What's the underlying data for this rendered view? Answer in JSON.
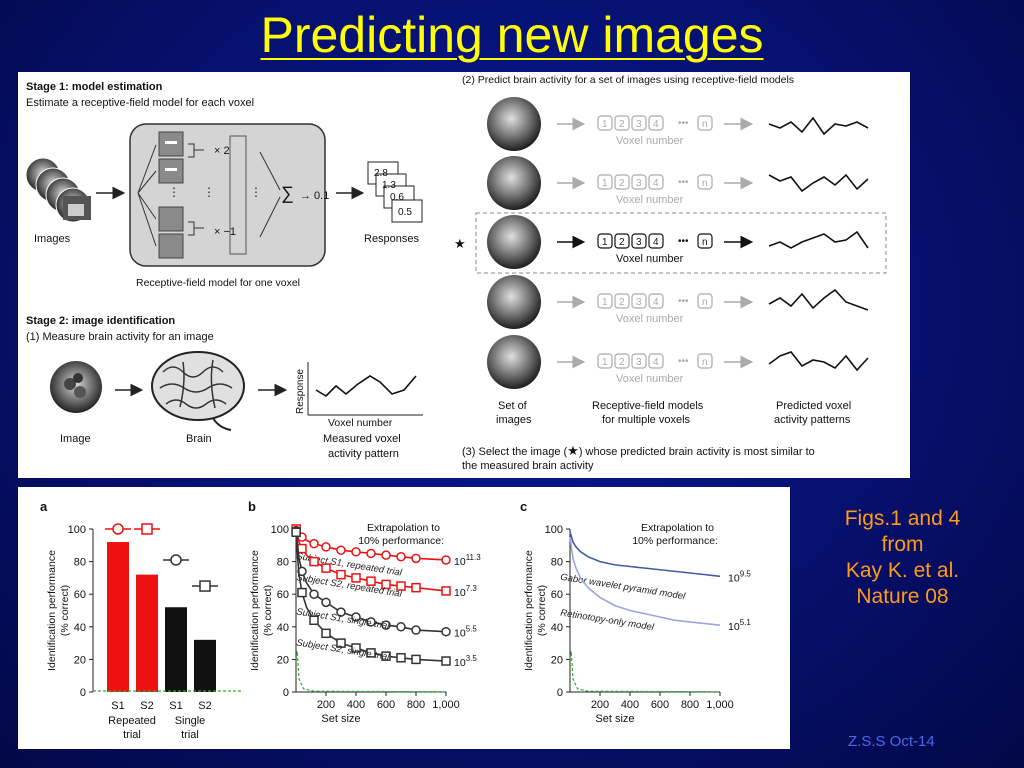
{
  "slide": {
    "title": "Predicting new images",
    "caption": [
      "Figs.1 and 4",
      "from",
      "Kay K. et al.",
      "Nature 08"
    ],
    "credit": "Z.S.S Oct-14"
  },
  "fig1": {
    "stage1_title": "Stage 1: model estimation",
    "stage1_sub": "Estimate a receptive-field model for each voxel",
    "images_label": "Images",
    "weight_top": "× 2",
    "weight_bottom": "× −1",
    "sum_symbol": "∑",
    "sum_out": "→ 0.1",
    "responses_label": "Responses",
    "response_vals": [
      "2.8",
      "1.3",
      "0.6",
      "0.5"
    ],
    "rf_caption": "Receptive-field model for one voxel",
    "stage2_title": "Stage 2: image identification",
    "stage2_sub": "(1) Measure brain activity for an image",
    "image_label": "Image",
    "brain_label": "Brain",
    "response_axis": "Response",
    "voxel_number_axis": "Voxel number",
    "measured_label_1": "Measured voxel",
    "measured_label_2": "activity pattern",
    "right_title": "(2) Predict brain activity for a set of images using receptive-field models",
    "voxel_boxes": [
      "1",
      "2",
      "3",
      "4",
      "n"
    ],
    "voxel_number": "Voxel number",
    "set_label_1": "Set of",
    "set_label_2": "images",
    "rf_models_1": "Receptive-field models",
    "rf_models_2": "for multiple voxels",
    "pred_1": "Predicted voxel",
    "pred_2": "activity patterns",
    "select_1": "(3) Select the image (",
    "select_2": ") whose predicted brain activity is most similar to",
    "select_3": "the measured brain activity"
  },
  "chart_data": [
    {
      "panel": "a",
      "type": "bar",
      "ylabel": "Identification performance (% correct)",
      "ylim": [
        0,
        100
      ],
      "yticks": [
        0,
        20,
        40,
        60,
        80,
        100
      ],
      "categories": [
        "S1",
        "S2",
        "S1",
        "S2"
      ],
      "group_labels": [
        "Repeated trial",
        "Single trial"
      ],
      "values": [
        92,
        72,
        52,
        32
      ],
      "colors": [
        "#ee1111",
        "#ee1111",
        "#111111",
        "#111111"
      ],
      "extrapolation_markers": [
        {
          "category": 0,
          "marker": "circle",
          "color": "#ee1111",
          "value": 100
        },
        {
          "category": 1,
          "marker": "square",
          "color": "#ee1111",
          "value": 100
        },
        {
          "category": 2,
          "marker": "circle",
          "color": "#333333",
          "value": 81
        },
        {
          "category": 3,
          "marker": "square",
          "color": "#333333",
          "value": 65
        }
      ],
      "chance_color": "#2faa2f"
    },
    {
      "panel": "b",
      "type": "line",
      "ylabel": "Identification performance (% correct)",
      "xlabel": "Set size",
      "xlim": [
        0,
        1000
      ],
      "ylim": [
        0,
        100
      ],
      "xticks": [
        200,
        400,
        600,
        800,
        "1,000"
      ],
      "yticks": [
        0,
        20,
        40,
        60,
        80,
        100
      ],
      "annotation": [
        "Extrapolation to",
        "10% performance:"
      ],
      "x": [
        1,
        10,
        20,
        40,
        70,
        120,
        200,
        300,
        400,
        500,
        600,
        700,
        800,
        1000
      ],
      "series": [
        {
          "name": "Subject S1, repeated trial",
          "marker": "circle",
          "color": "#ee1111",
          "extrap_base": "10",
          "extrap_exp": "11.3",
          "values": [
            100,
            99,
            97,
            95,
            93,
            91,
            89,
            87,
            86,
            85,
            84,
            83,
            82,
            81
          ]
        },
        {
          "name": "Subject S2, repeated trial",
          "marker": "square",
          "color": "#ee1111",
          "extrap_base": "10",
          "extrap_exp": "7.3",
          "values": [
            100,
            96,
            92,
            88,
            84,
            80,
            76,
            72,
            70,
            68,
            66,
            65,
            64,
            62
          ]
        },
        {
          "name": "Subject S1, single trial",
          "marker": "circle",
          "color": "#333333",
          "extrap_base": "10",
          "extrap_exp": "5.5",
          "values": [
            99,
            90,
            82,
            74,
            67,
            60,
            55,
            49,
            46,
            43,
            41,
            40,
            38,
            37
          ]
        },
        {
          "name": "Subject S2, single trial",
          "marker": "square",
          "color": "#333333",
          "extrap_base": "10",
          "extrap_exp": "3.5",
          "values": [
            98,
            84,
            72,
            61,
            52,
            44,
            36,
            30,
            27,
            24,
            22,
            21,
            20,
            19
          ]
        }
      ],
      "chance_color": "#2faa2f"
    },
    {
      "panel": "c",
      "type": "line",
      "ylabel": "Identification performance (% correct)",
      "xlabel": "Set size",
      "xlim": [
        0,
        1000
      ],
      "ylim": [
        0,
        100
      ],
      "xticks": [
        200,
        400,
        600,
        800,
        "1,000"
      ],
      "yticks": [
        0,
        20,
        40,
        60,
        80,
        100
      ],
      "annotation": [
        "Extrapolation to",
        "10% performance:"
      ],
      "x": [
        1,
        10,
        20,
        40,
        70,
        120,
        200,
        300,
        400,
        500,
        600,
        700,
        800,
        900,
        1000
      ],
      "series": [
        {
          "name": "Gabor wavelet pyramid model",
          "color": "#3f5ba8",
          "extrap_base": "10",
          "extrap_exp": "9.5",
          "values": [
            98,
            95,
            92,
            89,
            86,
            83,
            80,
            78,
            77,
            76,
            75,
            74,
            73,
            72,
            71
          ]
        },
        {
          "name": "Retinotopy-only model",
          "color": "#9aa6e0",
          "extrap_base": "10",
          "extrap_exp": "5.1",
          "values": [
            95,
            88,
            82,
            76,
            70,
            64,
            58,
            53,
            50,
            48,
            46,
            44,
            43,
            42,
            41
          ]
        }
      ],
      "chance_color": "#2faa2f"
    }
  ]
}
